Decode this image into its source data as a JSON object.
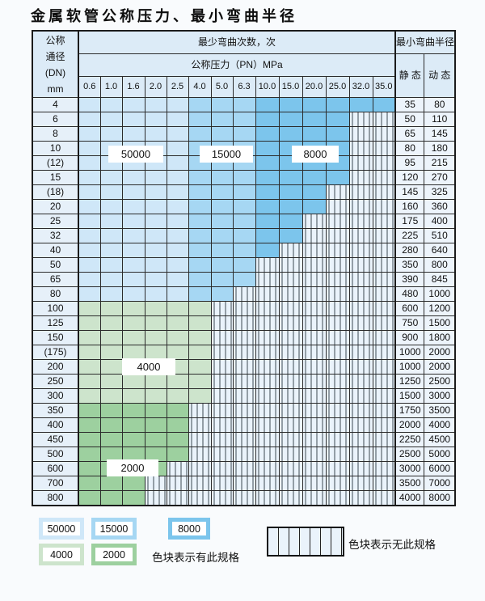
{
  "title": "金属软管公称压力、最小弯曲半径",
  "table": {
    "header": {
      "dn_lines": [
        "公称",
        "通径",
        "(DN)",
        "mm"
      ],
      "bend_cycles": "最少弯曲次数，次",
      "pressure": "公称压力（PN）MPa",
      "radius": "最小弯曲半径",
      "static": "静 态",
      "dynamic": "动 态",
      "pressure_cols": [
        "0.6",
        "1.0",
        "1.6",
        "2.0",
        "2.5",
        "4.0",
        "5.0",
        "6.3",
        "10.0",
        "15.0",
        "20.0",
        "25.0",
        "32.0",
        "35.0"
      ]
    },
    "rows": [
      {
        "dn": "4",
        "p": "b",
        "last": 13,
        "st": "35",
        "dy": "80"
      },
      {
        "dn": "6",
        "p": "b",
        "last": 11,
        "st": "50",
        "dy": "110"
      },
      {
        "dn": "8",
        "p": "b",
        "last": 11,
        "st": "65",
        "dy": "145"
      },
      {
        "dn": "10",
        "p": "b",
        "last": 11,
        "st": "80",
        "dy": "180"
      },
      {
        "dn": "(12)",
        "p": "b",
        "last": 11,
        "st": "95",
        "dy": "215"
      },
      {
        "dn": "15",
        "p": "b",
        "last": 11,
        "st": "120",
        "dy": "270"
      },
      {
        "dn": "(18)",
        "p": "b",
        "last": 10,
        "st": "145",
        "dy": "325"
      },
      {
        "dn": "20",
        "p": "b",
        "last": 10,
        "st": "160",
        "dy": "360"
      },
      {
        "dn": "25",
        "p": "b",
        "last": 9,
        "st": "175",
        "dy": "400"
      },
      {
        "dn": "32",
        "p": "b",
        "last": 9,
        "st": "225",
        "dy": "510"
      },
      {
        "dn": "40",
        "p": "b",
        "last": 8,
        "st": "280",
        "dy": "640"
      },
      {
        "dn": "50",
        "p": "b",
        "last": 7,
        "st": "350",
        "dy": "800"
      },
      {
        "dn": "65",
        "p": "b",
        "last": 7,
        "st": "390",
        "dy": "845"
      },
      {
        "dn": "80",
        "p": "b",
        "last": 6,
        "st": "480",
        "dy": "1000"
      },
      {
        "dn": "100",
        "p": "g4",
        "last": 5,
        "st": "600",
        "dy": "1200"
      },
      {
        "dn": "125",
        "p": "g4",
        "last": 5,
        "st": "750",
        "dy": "1500"
      },
      {
        "dn": "150",
        "p": "g4",
        "last": 5,
        "st": "900",
        "dy": "1800"
      },
      {
        "dn": "(175)",
        "p": "g4",
        "last": 5,
        "st": "1000",
        "dy": "2000"
      },
      {
        "dn": "200",
        "p": "g4",
        "last": 5,
        "st": "1000",
        "dy": "2000"
      },
      {
        "dn": "250",
        "p": "g4",
        "last": 5,
        "st": "1250",
        "dy": "2500"
      },
      {
        "dn": "300",
        "p": "g4",
        "last": 5,
        "st": "1500",
        "dy": "3000"
      },
      {
        "dn": "350",
        "p": "g2",
        "last": 4,
        "st": "1750",
        "dy": "3500"
      },
      {
        "dn": "400",
        "p": "g2",
        "last": 4,
        "st": "2000",
        "dy": "4000"
      },
      {
        "dn": "450",
        "p": "g2",
        "last": 4,
        "st": "2250",
        "dy": "4500"
      },
      {
        "dn": "500",
        "p": "g2",
        "last": 4,
        "st": "2500",
        "dy": "5000"
      },
      {
        "dn": "600",
        "p": "g2",
        "last": 3,
        "st": "3000",
        "dy": "6000"
      },
      {
        "dn": "700",
        "p": "g2",
        "last": 2,
        "st": "3500",
        "dy": "7000"
      },
      {
        "dn": "800",
        "p": "g2",
        "last": 2,
        "st": "4000",
        "dy": "8000"
      }
    ]
  },
  "band_labels": [
    "50000",
    "15000",
    "8000",
    "4000",
    "2000"
  ],
  "legend": {
    "swatches": [
      {
        "label": "50000",
        "key": "c50000"
      },
      {
        "label": "15000",
        "key": "c15000"
      },
      {
        "label": "8000",
        "key": "c8000"
      },
      {
        "label": "4000",
        "key": "c4000"
      },
      {
        "label": "2000",
        "key": "c2000"
      }
    ],
    "has_spec_label": "色块表示有此规格",
    "no_spec_label": "色块表示无此规格"
  },
  "colors": {
    "c50000": "#cfe7f8",
    "c15000": "#a6d7f3",
    "c8000": "#7cc5ec",
    "c4000": "#cde4cc",
    "c2000": "#9dd09f",
    "hatch_bg": "#eaf3fb",
    "header_bg": "#dcebf7"
  }
}
